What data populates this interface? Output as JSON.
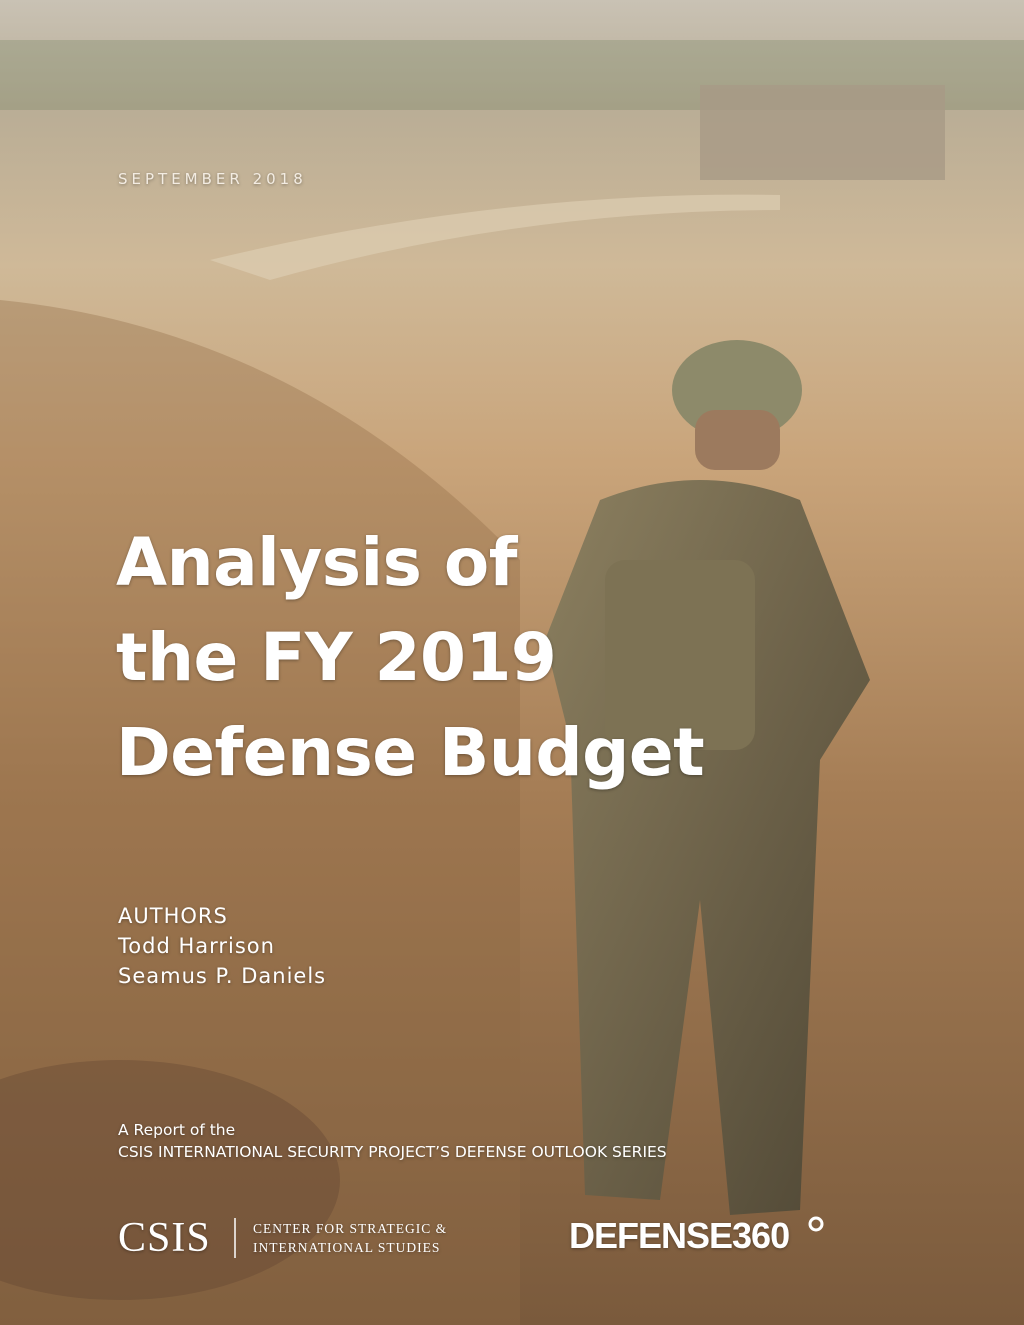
{
  "header": {
    "date": "SEPTEMBER 2018"
  },
  "title": {
    "lines": [
      "Analysis of",
      "the FY 2019",
      "Defense Budget"
    ]
  },
  "authors": {
    "heading": "AUTHORS",
    "names": [
      "Todd Harrison",
      "Seamus P. Daniels"
    ]
  },
  "report": {
    "intro": "A Report of the",
    "series": "CSIS INTERNATIONAL SECURITY PROJECT’S DEFENSE OUTLOOK SERIES"
  },
  "footer": {
    "csis": "CSIS",
    "csis_full": [
      "CENTER FOR STRATEGIC &",
      "INTERNATIONAL STUDIES"
    ],
    "brand": "DEFENSE360"
  }
}
